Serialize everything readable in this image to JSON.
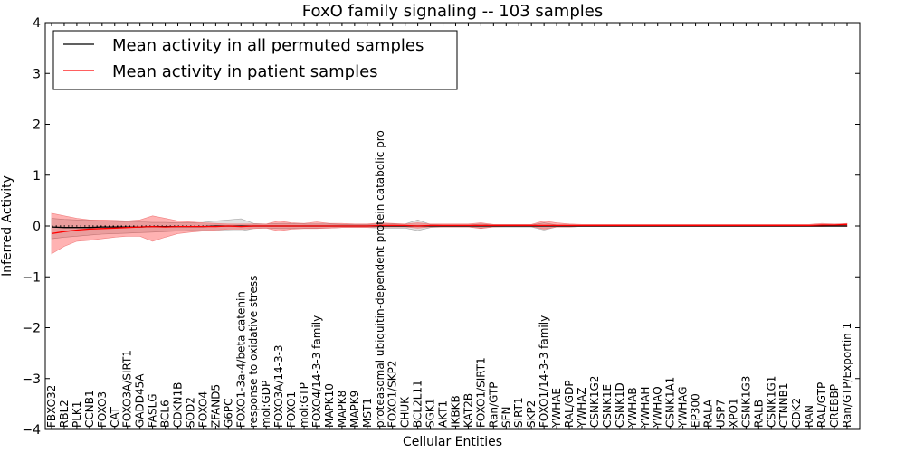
{
  "chart_data": {
    "type": "line",
    "title": "FoxO family signaling -- 103 samples",
    "xlabel": "Cellular Entities",
    "ylabel": "Inferred Activity",
    "ylim": [
      -4,
      4
    ],
    "yticks": [
      -4,
      -3,
      -2,
      -1,
      0,
      1,
      2,
      3,
      4
    ],
    "ytick_labels": [
      "−4",
      "−3",
      "−2",
      "−1",
      "0",
      "1",
      "2",
      "3",
      "4"
    ],
    "legend": {
      "position": "top-left",
      "entries": [
        {
          "label": "Mean activity in all permuted samples",
          "color": "#000000"
        },
        {
          "label": "Mean activity in patient samples",
          "color": "#ff0000"
        }
      ]
    },
    "categories": [
      "FBXO32",
      "RBL2",
      "PLK1",
      "CCNB1",
      "FOXO3",
      "CAT",
      "FOXO3A/SIRT1",
      "GADD45A",
      "FASLG",
      "BCL6",
      "CDKN1B",
      "SOD2",
      "FOXO4",
      "ZFAND5",
      "G6PC",
      "FOXO1-3a-4/beta catenin",
      "response to oxidative stress",
      "mol:GDP",
      "FOXO3A/14-3-3",
      "FOXO1",
      "mol:GTP",
      "FOXO4/14-3-3 family",
      "MAPK10",
      "MAPK8",
      "MAPK9",
      "MST1",
      "proteasomal ubiquitin-dependent protein catabolic pro",
      "FOXO1/SKP2",
      "CHUK",
      "BCL2L11",
      "SGK1",
      "AKT1",
      "IKBKB",
      "KAT2B",
      "FOXO1/SIRT1",
      "Ran/GTP",
      "SFN",
      "SIRT1",
      "SKP2",
      "FOXO1/14-3-3 family",
      "YWHAE",
      "RAL/GDP",
      "YWHAZ",
      "CSNK1G2",
      "CSNK1E",
      "CSNK1D",
      "YWHAB",
      "YWHAH",
      "YWHAQ",
      "CSNK1A1",
      "YWHAG",
      "EP300",
      "RALA",
      "USP7",
      "XPO1",
      "CSNK1G3",
      "RALB",
      "CSNK1G1",
      "CTNNB1",
      "CDK2",
      "RAN",
      "RAL/GTP",
      "CREBBP",
      "Ran/GTP/Exportin 1"
    ],
    "series": [
      {
        "name": "Mean activity in all permuted samples",
        "color": "#000000",
        "values": [
          -0.02,
          -0.03,
          -0.03,
          -0.03,
          -0.02,
          -0.02,
          -0.02,
          -0.02,
          -0.01,
          -0.01,
          -0.01,
          -0.01,
          -0.01,
          0,
          0,
          0,
          0,
          0,
          0,
          0,
          0,
          0,
          0,
          0,
          0,
          0,
          0,
          0,
          0,
          0,
          0,
          0,
          0,
          0,
          0,
          0,
          0,
          0,
          0,
          0,
          0,
          0,
          0,
          0,
          0,
          0,
          0,
          0,
          0,
          0,
          0,
          0,
          0,
          0,
          0,
          0,
          0,
          0,
          0,
          0,
          0,
          0,
          0,
          0
        ],
        "lower": [
          -0.25,
          -0.22,
          -0.2,
          -0.18,
          -0.16,
          -0.15,
          -0.14,
          -0.13,
          -0.12,
          -0.11,
          -0.1,
          -0.09,
          -0.09,
          -0.09,
          -0.09,
          -0.1,
          -0.05,
          -0.04,
          -0.05,
          -0.05,
          -0.04,
          -0.04,
          -0.04,
          -0.03,
          -0.03,
          -0.03,
          -0.04,
          -0.04,
          -0.04,
          -0.09,
          -0.03,
          -0.02,
          -0.02,
          -0.02,
          -0.04,
          -0.02,
          -0.02,
          -0.02,
          -0.02,
          -0.08,
          -0.02,
          -0.02,
          -0.01,
          -0.01,
          -0.01,
          -0.01,
          -0.01,
          -0.01,
          -0.01,
          -0.01,
          -0.01,
          -0.01,
          -0.01,
          -0.01,
          -0.01,
          -0.01,
          -0.01,
          -0.01,
          -0.01,
          -0.01,
          -0.01,
          -0.01,
          -0.01,
          -0.01
        ],
        "upper": [
          0.15,
          0.13,
          0.12,
          0.11,
          0.1,
          0.09,
          0.08,
          0.08,
          0.07,
          0.07,
          0.06,
          0.06,
          0.07,
          0.1,
          0.12,
          0.14,
          0.05,
          0.04,
          0.05,
          0.05,
          0.04,
          0.04,
          0.04,
          0.03,
          0.03,
          0.03,
          0.04,
          0.04,
          0.04,
          0.12,
          0.03,
          0.02,
          0.02,
          0.02,
          0.04,
          0.02,
          0.02,
          0.02,
          0.02,
          0.06,
          0.02,
          0.02,
          0.01,
          0.01,
          0.01,
          0.01,
          0.01,
          0.01,
          0.01,
          0.01,
          0.01,
          0.01,
          0.01,
          0.01,
          0.01,
          0.01,
          0.01,
          0.01,
          0.01,
          0.01,
          0.01,
          0.01,
          0.01,
          0.01
        ]
      },
      {
        "name": "Mean activity in patient samples",
        "color": "#ff0000",
        "values": [
          -0.15,
          -0.11,
          -0.08,
          -0.06,
          -0.05,
          -0.04,
          -0.03,
          -0.02,
          -0.01,
          -0.02,
          -0.01,
          -0.01,
          -0.01,
          -0.01,
          0,
          -0.01,
          0,
          0,
          0,
          0,
          0,
          0,
          0,
          0,
          0,
          0,
          0.01,
          0.01,
          0.01,
          0,
          0.01,
          0.01,
          0.01,
          0.01,
          0.01,
          0.01,
          0.01,
          0.01,
          0.01,
          0.01,
          0.01,
          0.01,
          0.01,
          0.01,
          0.01,
          0.01,
          0.01,
          0.01,
          0.01,
          0.01,
          0.01,
          0.01,
          0.01,
          0.01,
          0.01,
          0.01,
          0.01,
          0.01,
          0.01,
          0.01,
          0.01,
          0.02,
          0.02,
          0.03
        ],
        "lower": [
          -0.55,
          -0.4,
          -0.3,
          -0.28,
          -0.25,
          -0.22,
          -0.2,
          -0.2,
          -0.3,
          -0.22,
          -0.15,
          -0.12,
          -0.1,
          -0.08,
          -0.06,
          -0.06,
          -0.05,
          -0.04,
          -0.1,
          -0.06,
          -0.05,
          -0.05,
          -0.04,
          -0.03,
          -0.03,
          -0.03,
          -0.02,
          -0.02,
          -0.02,
          -0.04,
          -0.02,
          -0.02,
          -0.02,
          -0.02,
          -0.05,
          -0.02,
          -0.01,
          -0.01,
          -0.01,
          -0.06,
          -0.02,
          -0.02,
          -0.01,
          -0.01,
          -0.01,
          -0.01,
          -0.01,
          -0.01,
          -0.01,
          -0.01,
          -0.01,
          -0.01,
          -0.01,
          -0.01,
          -0.01,
          -0.01,
          -0.01,
          -0.01,
          -0.01,
          -0.01,
          -0.01,
          -0.01,
          0,
          -0.01
        ],
        "upper": [
          0.25,
          0.2,
          0.15,
          0.12,
          0.12,
          0.11,
          0.1,
          0.12,
          0.2,
          0.15,
          0.1,
          0.08,
          0.06,
          0.05,
          0.04,
          0.04,
          0.04,
          0.04,
          0.1,
          0.06,
          0.05,
          0.08,
          0.05,
          0.05,
          0.04,
          0.04,
          0.06,
          0.05,
          0.04,
          0.06,
          0.04,
          0.04,
          0.04,
          0.04,
          0.06,
          0.03,
          0.03,
          0.03,
          0.03,
          0.1,
          0.06,
          0.04,
          0.03,
          0.03,
          0.03,
          0.03,
          0.03,
          0.03,
          0.03,
          0.03,
          0.03,
          0.03,
          0.03,
          0.03,
          0.03,
          0.03,
          0.03,
          0.03,
          0.03,
          0.03,
          0.03,
          0.05,
          0.04,
          0.05
        ]
      }
    ]
  }
}
